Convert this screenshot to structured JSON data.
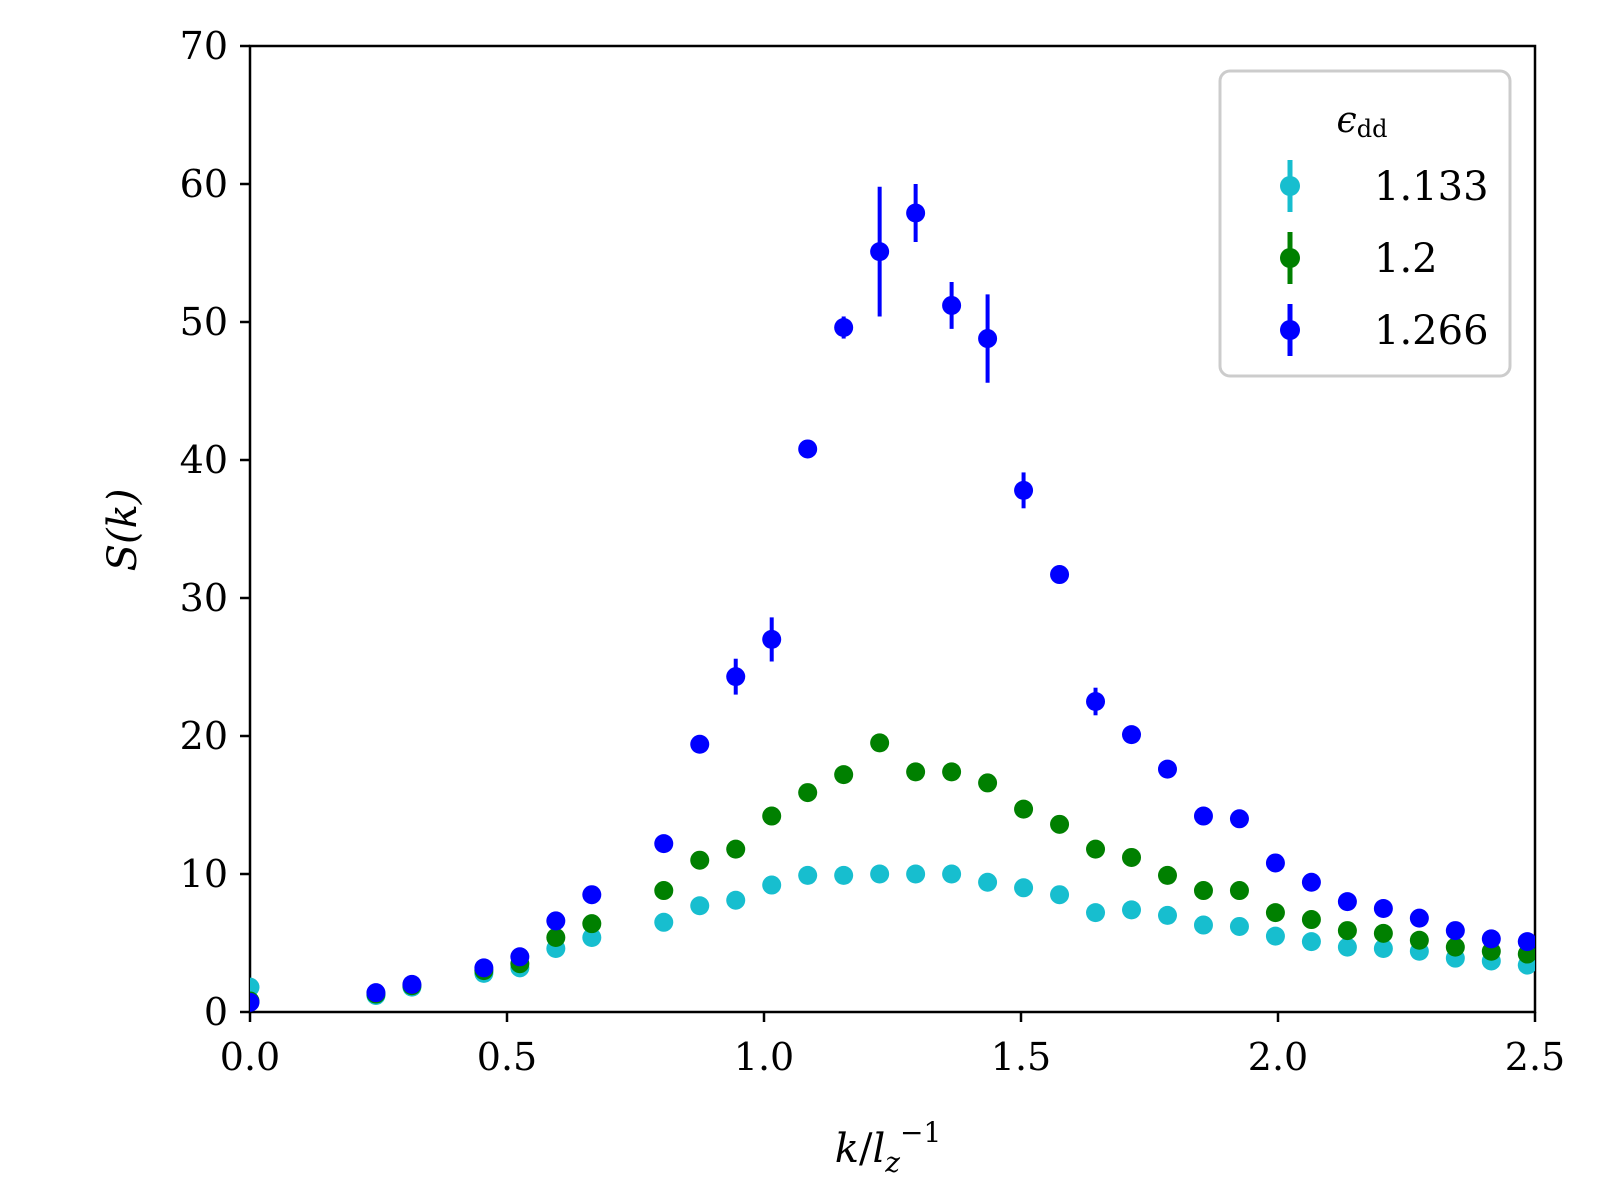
{
  "chart_data": {
    "type": "scatter",
    "title": "",
    "xlabel": "k/l_z^{-1}",
    "xlabel_parts": {
      "num": "k",
      "slash": "/",
      "den": "l",
      "den_sub": "z",
      "den_sup": "−1"
    },
    "ylabel": "S(k)",
    "xlim": [
      0,
      2.5
    ],
    "ylim": [
      0,
      70
    ],
    "xticks": [
      0.0,
      0.5,
      1.0,
      1.5,
      2.0,
      2.5
    ],
    "xtick_labels": [
      "0.0",
      "0.5",
      "1.0",
      "1.5",
      "2.0",
      "2.5"
    ],
    "yticks": [
      0,
      10,
      20,
      30,
      40,
      50,
      60,
      70
    ],
    "ytick_labels": [
      "0",
      "10",
      "20",
      "30",
      "40",
      "50",
      "60",
      "70"
    ],
    "grid": false,
    "legend": {
      "placement": "top-right",
      "title": "ϵ",
      "title_sub": "dd",
      "entries": [
        "1.133",
        "1.2",
        "1.266"
      ]
    },
    "series": [
      {
        "name": "1.133",
        "color": "#17becf",
        "x": [
          0.0,
          0.245,
          0.315,
          0.455,
          0.525,
          0.595,
          0.665,
          0.805,
          0.875,
          0.945,
          1.015,
          1.085,
          1.155,
          1.225,
          1.295,
          1.365,
          1.435,
          1.505,
          1.575,
          1.645,
          1.715,
          1.785,
          1.855,
          1.925,
          1.995,
          2.065,
          2.135,
          2.205,
          2.275,
          2.345,
          2.415,
          2.485
        ],
        "y": [
          1.8,
          1.2,
          1.8,
          2.8,
          3.2,
          4.6,
          5.4,
          6.5,
          7.7,
          8.1,
          9.2,
          9.9,
          9.9,
          10.0,
          10.0,
          10.0,
          9.4,
          9.0,
          8.5,
          7.2,
          7.4,
          7.0,
          6.3,
          6.2,
          5.5,
          5.1,
          4.7,
          4.6,
          4.4,
          3.9,
          3.7,
          3.4
        ],
        "err": [
          0.1,
          0.1,
          0.1,
          0.1,
          0.1,
          0.1,
          0.1,
          0.1,
          0.1,
          0.1,
          0.1,
          0.1,
          0.1,
          0.1,
          0.1,
          0.1,
          0.1,
          0.1,
          0.1,
          0.1,
          0.1,
          0.1,
          0.1,
          0.1,
          0.1,
          0.1,
          0.1,
          0.1,
          0.1,
          0.1,
          0.1,
          0.1
        ]
      },
      {
        "name": "1.2",
        "color": "#008000",
        "x": [
          0.0,
          0.245,
          0.315,
          0.455,
          0.525,
          0.595,
          0.665,
          0.805,
          0.875,
          0.945,
          1.015,
          1.085,
          1.155,
          1.225,
          1.295,
          1.365,
          1.435,
          1.505,
          1.575,
          1.645,
          1.715,
          1.785,
          1.855,
          1.925,
          1.995,
          2.065,
          2.135,
          2.205,
          2.275,
          2.345,
          2.415,
          2.485
        ],
        "y": [
          0.8,
          1.3,
          1.9,
          3.0,
          3.5,
          5.4,
          6.4,
          8.8,
          11.0,
          11.8,
          14.2,
          15.9,
          17.2,
          19.5,
          17.4,
          17.4,
          16.6,
          14.7,
          13.6,
          11.8,
          11.2,
          9.9,
          8.8,
          8.8,
          7.2,
          6.7,
          5.9,
          5.7,
          5.2,
          4.7,
          4.4,
          4.2
        ],
        "err": [
          0.1,
          0.1,
          0.1,
          0.1,
          0.1,
          0.1,
          0.1,
          0.1,
          0.2,
          0.2,
          0.2,
          0.2,
          0.2,
          0.5,
          0.2,
          0.2,
          0.2,
          0.2,
          0.2,
          0.2,
          0.2,
          0.1,
          0.1,
          0.1,
          0.1,
          0.1,
          0.1,
          0.1,
          0.1,
          0.1,
          0.1,
          0.1
        ]
      },
      {
        "name": "1.266",
        "color": "#0000ff",
        "x": [
          0.0,
          0.245,
          0.315,
          0.455,
          0.525,
          0.595,
          0.665,
          0.805,
          0.875,
          0.945,
          1.015,
          1.085,
          1.155,
          1.225,
          1.295,
          1.365,
          1.435,
          1.505,
          1.575,
          1.645,
          1.715,
          1.785,
          1.855,
          1.925,
          1.995,
          2.065,
          2.135,
          2.205,
          2.275,
          2.345,
          2.415,
          2.485
        ],
        "y": [
          0.7,
          1.4,
          2.0,
          3.2,
          4.0,
          6.6,
          8.5,
          12.2,
          19.4,
          24.3,
          27.0,
          40.8,
          49.6,
          55.1,
          57.9,
          51.2,
          48.8,
          37.8,
          31.7,
          22.5,
          20.1,
          17.6,
          14.2,
          14.0,
          10.8,
          9.4,
          8.0,
          7.5,
          6.8,
          5.9,
          5.3,
          5.1
        ],
        "err": [
          0.1,
          0.1,
          0.1,
          0.2,
          0.2,
          0.2,
          0.2,
          0.3,
          0.3,
          1.3,
          1.6,
          0.3,
          0.8,
          4.7,
          2.1,
          1.7,
          3.2,
          1.3,
          0.3,
          1.0,
          0.3,
          0.3,
          0.3,
          0.3,
          0.3,
          0.2,
          0.2,
          0.2,
          0.2,
          0.2,
          0.2,
          0.2
        ]
      }
    ]
  }
}
